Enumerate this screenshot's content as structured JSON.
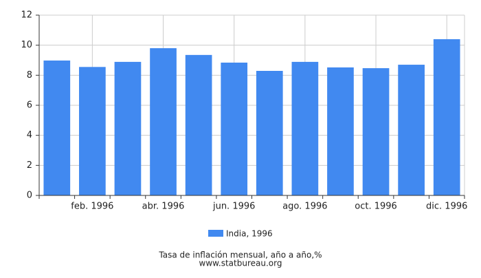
{
  "chart_data": {
    "type": "bar",
    "categories": [
      null,
      "feb. 1996",
      null,
      "abr. 1996",
      null,
      "jun. 1996",
      null,
      "ago. 1996",
      null,
      "oct. 1996",
      null,
      "dic. 1996"
    ],
    "series": [
      {
        "name": "India, 1996",
        "color": "#4189f0",
        "values": [
          8.98,
          8.55,
          8.89,
          9.8,
          9.35,
          8.84,
          8.29,
          8.89,
          8.52,
          8.47,
          8.7,
          10.4
        ]
      }
    ],
    "ylim": [
      0,
      12
    ],
    "yticks": [
      0,
      2,
      4,
      6,
      8,
      10,
      12
    ],
    "grid": true,
    "caption": "Tasa de inflación mensual, año a año,%",
    "source": "www.statbureau.org"
  }
}
